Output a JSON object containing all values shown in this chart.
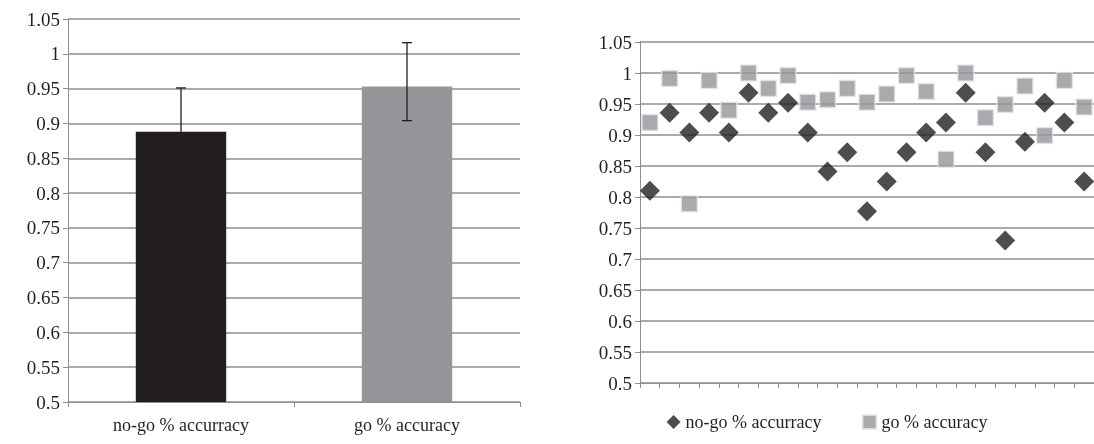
{
  "chart_data": [
    {
      "type": "bar",
      "categories": [
        "no-go % accurracy",
        "go % accuracy"
      ],
      "values": [
        0.888,
        0.953
      ],
      "colors": [
        "#231f20",
        "#939598"
      ],
      "errors": [
        0.063,
        [
          0.904,
          1.016
        ]
      ],
      "ylim": [
        0.5,
        1.05
      ],
      "yticks": [
        0.5,
        0.55,
        0.6,
        0.65,
        0.7,
        0.75,
        0.8,
        0.85,
        0.9,
        0.95,
        1,
        1.05
      ],
      "grid": "y",
      "legend": false
    },
    {
      "type": "scatter",
      "categories": [
        null,
        null,
        null,
        null,
        null,
        null,
        null,
        null,
        null,
        null,
        null,
        null,
        null,
        null,
        null,
        null,
        null,
        null,
        null,
        null,
        null,
        null,
        null
      ],
      "ylim": [
        0.5,
        1.05
      ],
      "yticks": [
        0.5,
        0.55,
        0.6,
        0.65,
        0.7,
        0.75,
        0.8,
        0.85,
        0.9,
        0.95,
        1,
        1.05
      ],
      "grid": "y",
      "legend": "bottom",
      "series": [
        {
          "name": "no-go % accurracy",
          "color": "#231f20",
          "marker": "diamond",
          "values": [
            0.81,
            0.936,
            0.904,
            0.936,
            0.904,
            0.968,
            0.936,
            0.952,
            0.904,
            0.841,
            0.872,
            0.777,
            0.825,
            0.872,
            0.904,
            0.92,
            0.968,
            0.872,
            0.73,
            0.889,
            0.952,
            0.92,
            0.825
          ]
        },
        {
          "name": "go % accuracy",
          "color": "#939598",
          "marker": "square",
          "values": [
            0.92,
            0.991,
            0.789,
            0.988,
            0.94,
            1.0,
            0.975,
            0.996,
            0.953,
            0.957,
            0.975,
            0.953,
            0.966,
            0.996,
            0.97,
            0.861,
            1.0,
            0.928,
            0.949,
            0.979,
            0.899,
            0.988,
            0.945
          ]
        }
      ]
    }
  ]
}
